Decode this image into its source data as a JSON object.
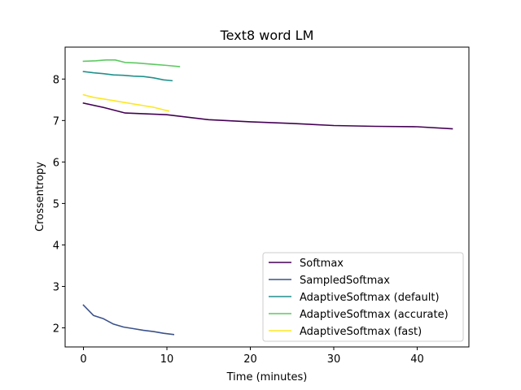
{
  "chart_data": {
    "type": "line",
    "title": "Text8 word LM",
    "xlabel": "Time (minutes)",
    "ylabel": "Crossentropy",
    "xlim": [
      -2.2,
      46.2
    ],
    "ylim": [
      1.54,
      8.77
    ],
    "xticks": [
      0,
      10,
      20,
      30,
      40
    ],
    "yticks": [
      2,
      3,
      4,
      5,
      6,
      7,
      8
    ],
    "grid": false,
    "legend_position": "lower-right",
    "series": [
      {
        "name": "Softmax",
        "color": "#440154",
        "x": [
          0,
          2.5,
          5,
          10,
          15,
          20,
          25,
          30,
          35,
          40,
          44.2
        ],
        "y": [
          7.42,
          7.31,
          7.18,
          7.14,
          7.02,
          6.97,
          6.93,
          6.88,
          6.86,
          6.85,
          6.8
        ]
      },
      {
        "name": "SampledSoftmax",
        "color": "#3b528b",
        "x": [
          0,
          1.2,
          2.4,
          3.6,
          4.8,
          6,
          7.2,
          8.4,
          9.6,
          10.8
        ],
        "y": [
          2.55,
          2.3,
          2.22,
          2.09,
          2.02,
          1.98,
          1.94,
          1.91,
          1.87,
          1.84
        ]
      },
      {
        "name": "AdaptiveSoftmax (default)",
        "color": "#21918c",
        "x": [
          0,
          1.2,
          2.4,
          3.6,
          4.8,
          6,
          7.2,
          8.4,
          9.6,
          10.6
        ],
        "y": [
          8.18,
          8.15,
          8.13,
          8.1,
          8.09,
          8.07,
          8.06,
          8.03,
          7.98,
          7.96
        ]
      },
      {
        "name": "AdaptiveSoftmax (accurate)",
        "color": "#5ec962",
        "x": [
          0,
          1.5,
          2.7,
          3.8,
          5,
          6.3,
          7.5,
          8.7,
          10,
          11.5
        ],
        "y": [
          8.43,
          8.44,
          8.46,
          8.46,
          8.4,
          8.39,
          8.37,
          8.35,
          8.33,
          8.3
        ]
      },
      {
        "name": "AdaptiveSoftmax (fast)",
        "color": "#fde725",
        "x": [
          0,
          1.2,
          2.4,
          3.6,
          4.8,
          6,
          7.2,
          8.4,
          9.6,
          10.2
        ],
        "y": [
          7.62,
          7.56,
          7.52,
          7.48,
          7.44,
          7.4,
          7.36,
          7.32,
          7.26,
          7.23
        ]
      }
    ]
  }
}
